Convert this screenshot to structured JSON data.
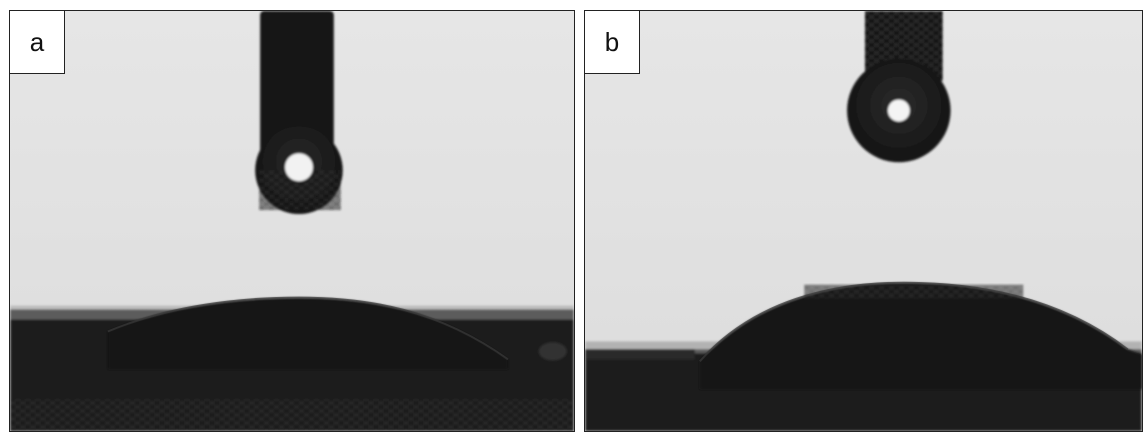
{
  "panels": [
    {
      "label": "a"
    },
    {
      "label": "b"
    }
  ],
  "colors": {
    "background": "#e4e4e4",
    "droplet": "#161616",
    "substrate": "#1c1c1c",
    "highlight": "#f4f4f4"
  }
}
